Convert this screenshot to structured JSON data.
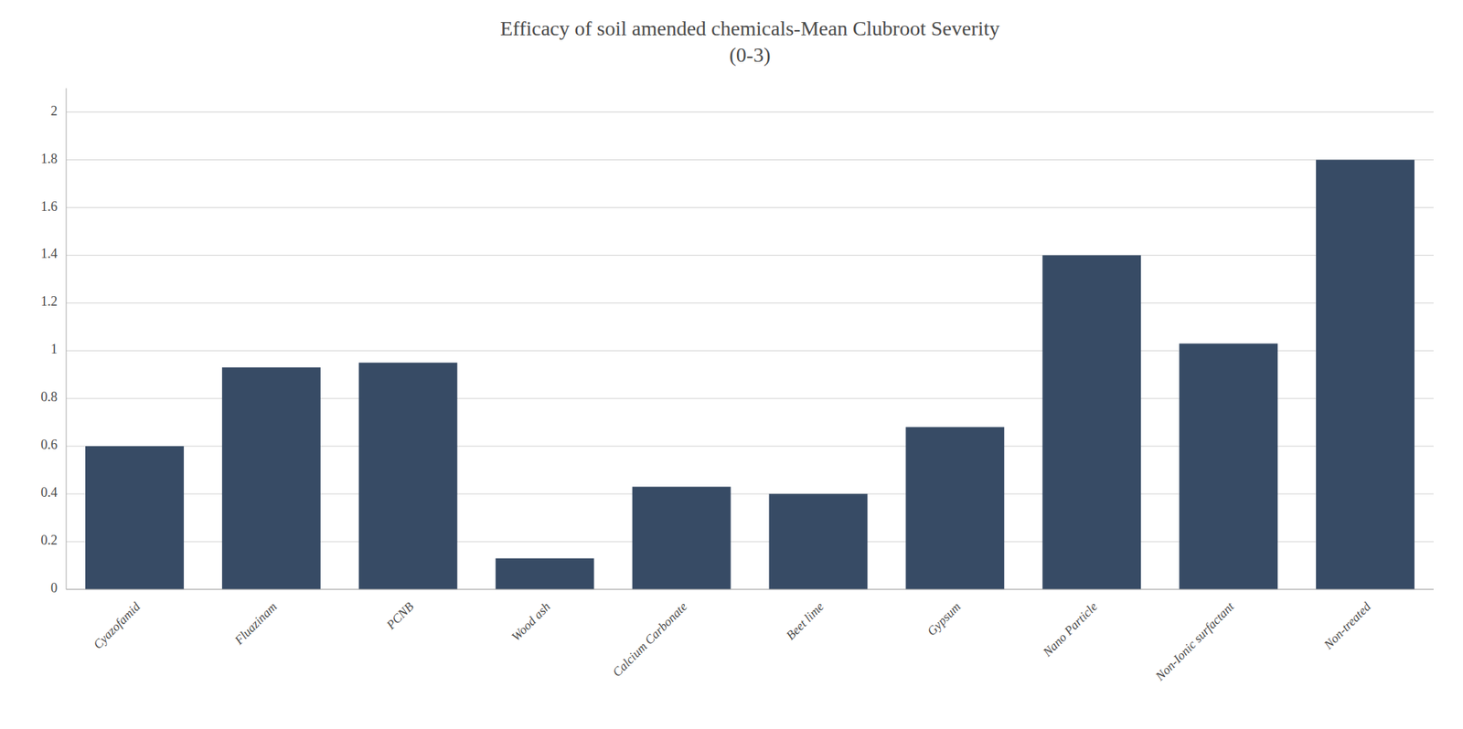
{
  "chart_data": {
    "type": "bar",
    "title": "Efficacy of soil amended chemicals-Mean Clubroot Severity",
    "subtitle": "(0-3)",
    "categories": [
      "Cyazofamid",
      "Fluazinam",
      "PCNB",
      "Wood ash",
      "Calcium Carbonate",
      "Beet lime",
      "Gypsum",
      "Nano Particle",
      "Non-Ionic surfactant",
      "Non-treated"
    ],
    "values": [
      0.6,
      0.93,
      0.95,
      0.13,
      0.43,
      0.4,
      0.68,
      1.4,
      1.03,
      1.8
    ],
    "color": "#374B65",
    "ylim": [
      0,
      2.1
    ],
    "yticks": [
      0,
      0.2,
      0.4,
      0.6,
      0.8,
      1,
      1.2,
      1.4,
      1.6,
      1.8,
      2
    ],
    "grid": true
  }
}
